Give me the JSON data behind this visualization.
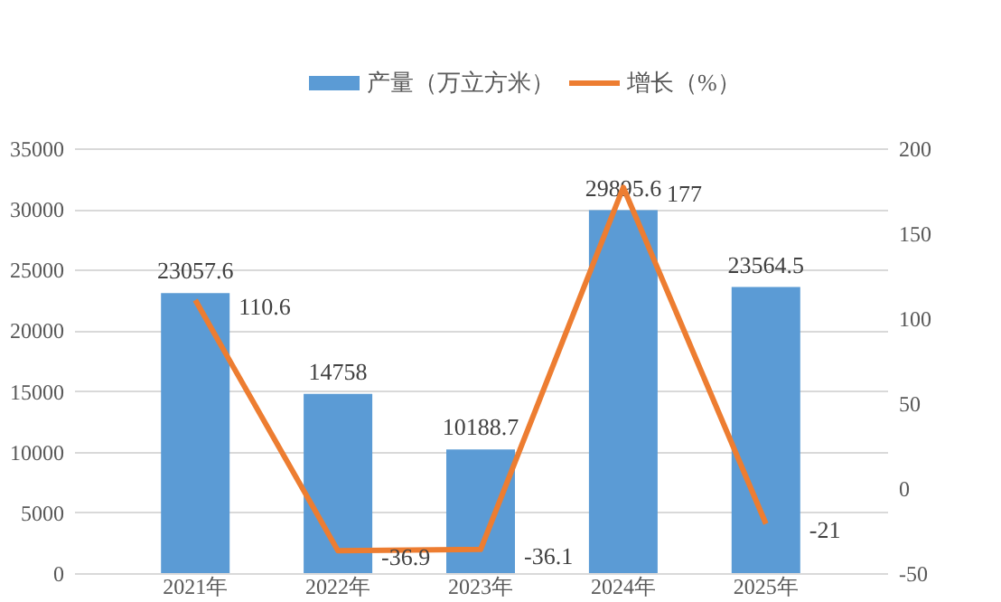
{
  "chart_data": {
    "type": "bar",
    "categories": [
      "2021年",
      "2022年",
      "2023年",
      "2024年",
      "2025年"
    ],
    "series": [
      {
        "name": "产量（万立方米）",
        "color": "#5b9bd5",
        "values": [
          23057.6,
          14758,
          10188.7,
          29895.6,
          23564.5
        ]
      },
      {
        "name": "增长（%）",
        "type": "line",
        "axis": "y2",
        "color": "#ed7d31",
        "values": [
          110.6,
          -36.9,
          -36.1,
          177,
          -21
        ]
      }
    ],
    "ylim": [
      0,
      35000
    ],
    "yticks": [
      0,
      5000,
      10000,
      15000,
      20000,
      25000,
      30000,
      35000
    ],
    "y2lim": [
      -50,
      200
    ],
    "y2ticks": [
      -50,
      0,
      50,
      100,
      150,
      200
    ],
    "grid": "y",
    "legend": "top",
    "data_labels": true,
    "marker": "none",
    "line_style": "solid"
  }
}
